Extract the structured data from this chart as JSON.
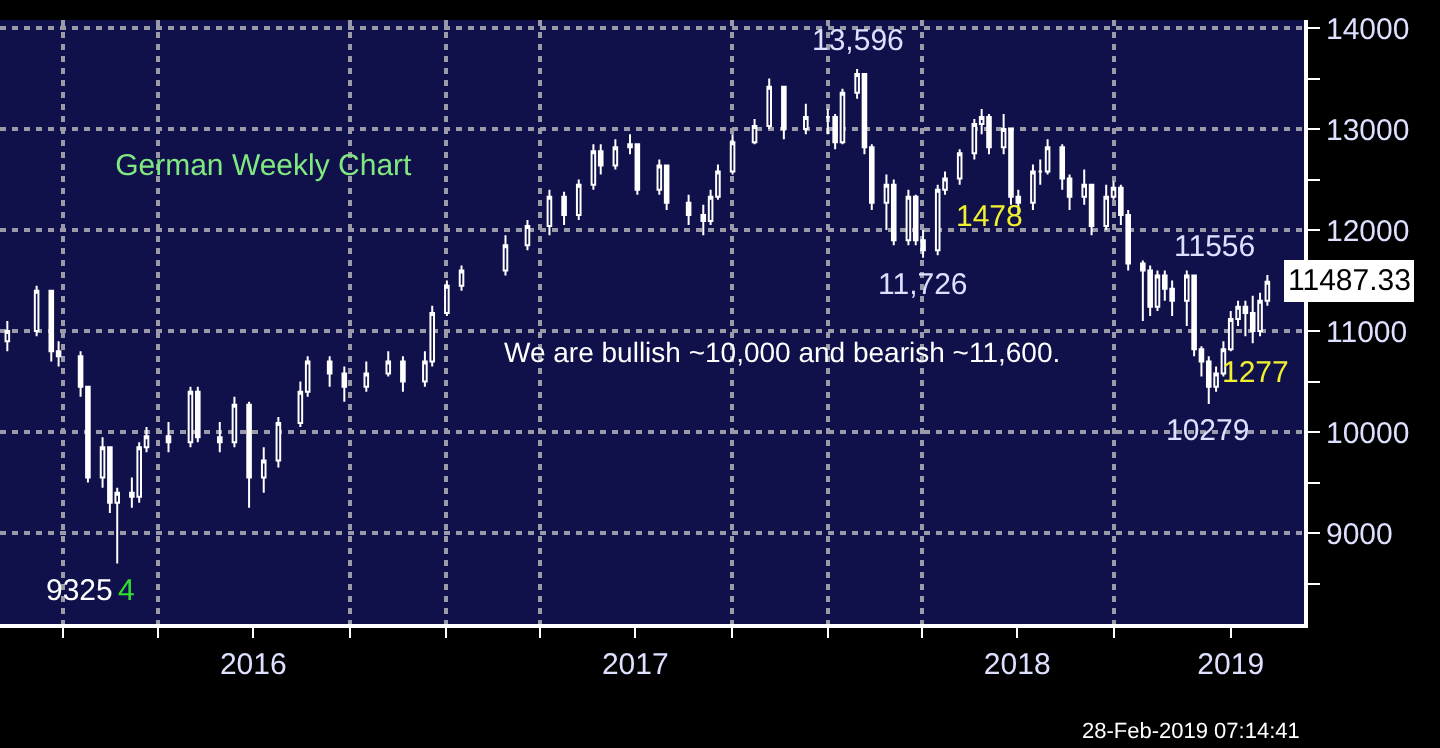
{
  "chart_data": {
    "type": "candlestick",
    "title": "German Weekly Chart",
    "x": [
      "2015-11-09",
      "2015-12-07",
      "2015-12-21",
      "2015-12-28",
      "2016-01-18",
      "2016-01-25",
      "2016-02-08",
      "2016-02-15",
      "2016-02-22",
      "2016-03-07",
      "2016-03-14",
      "2016-03-21",
      "2016-04-11",
      "2016-05-02",
      "2016-05-09",
      "2016-05-30",
      "2016-06-13",
      "2016-06-27",
      "2016-07-11",
      "2016-07-25",
      "2016-08-15",
      "2016-08-22",
      "2016-09-12",
      "2016-09-26",
      "2016-10-17",
      "2016-11-07",
      "2016-11-21",
      "2016-12-12",
      "2016-12-19",
      "2017-01-02",
      "2017-01-16",
      "2017-02-27",
      "2017-03-20",
      "2017-04-10",
      "2017-04-24",
      "2017-05-08",
      "2017-05-22",
      "2017-05-29",
      "2017-06-12",
      "2017-06-26",
      "2017-07-03",
      "2017-07-24",
      "2017-07-31",
      "2017-08-21",
      "2017-09-04",
      "2017-09-11",
      "2017-09-18",
      "2017-10-02",
      "2017-10-23",
      "2017-11-06",
      "2017-11-20",
      "2017-12-11",
      "2018-01-01",
      "2018-01-08",
      "2018-01-15",
      "2018-01-29",
      "2018-02-05",
      "2018-02-12",
      "2018-02-26",
      "2018-03-05",
      "2018-03-19",
      "2018-03-26",
      "2018-04-02",
      "2018-04-16",
      "2018-04-23",
      "2018-05-07",
      "2018-05-21",
      "2018-05-28",
      "2018-06-04",
      "2018-06-18",
      "2018-06-25",
      "2018-07-02",
      "2018-07-16",
      "2018-07-23",
      "2018-07-30",
      "2018-08-13",
      "2018-08-20",
      "2018-09-03",
      "2018-09-10",
      "2018-09-24",
      "2018-10-01",
      "2018-10-08",
      "2018-10-15",
      "2018-10-29",
      "2018-11-05",
      "2018-11-12",
      "2018-11-19",
      "2018-11-26",
      "2018-12-10",
      "2018-12-17",
      "2018-12-24",
      "2018-12-31",
      "2019-01-07",
      "2019-01-14",
      "2019-01-21",
      "2019-01-28",
      "2019-02-04",
      "2019-02-11",
      "2019-02-18",
      "2019-02-25"
    ],
    "ohlc": [
      [
        10900,
        11100,
        10800,
        11000
      ],
      [
        11000,
        11450,
        10950,
        11400
      ],
      [
        11400,
        11400,
        10700,
        10800
      ],
      [
        10800,
        10900,
        10650,
        10750
      ],
      [
        10750,
        10800,
        10350,
        10450
      ],
      [
        10450,
        10450,
        9500,
        9550
      ],
      [
        9550,
        9950,
        9450,
        9850
      ],
      [
        9850,
        9850,
        9200,
        9300
      ],
      [
        9300,
        9450,
        8700,
        9400
      ],
      [
        9400,
        9550,
        9250,
        9360
      ],
      [
        9360,
        9900,
        9300,
        9850
      ],
      [
        9850,
        10050,
        9800,
        9960
      ],
      [
        9960,
        10100,
        9800,
        9900
      ],
      [
        9900,
        10450,
        9850,
        10400
      ],
      [
        10400,
        10450,
        9900,
        9950
      ],
      [
        9950,
        10100,
        9800,
        9900
      ],
      [
        9900,
        10350,
        9850,
        10270
      ],
      [
        10270,
        10300,
        9250,
        9550
      ],
      [
        9550,
        9850,
        9400,
        9720
      ],
      [
        9720,
        10150,
        9650,
        10090
      ],
      [
        10090,
        10500,
        10050,
        10400
      ],
      [
        10400,
        10750,
        10350,
        10700
      ],
      [
        10700,
        10750,
        10450,
        10580
      ],
      [
        10580,
        10650,
        10300,
        10450
      ],
      [
        10450,
        10700,
        10400,
        10580
      ],
      [
        10580,
        10800,
        10550,
        10700
      ],
      [
        10700,
        10750,
        10400,
        10500
      ],
      [
        10500,
        10800,
        10450,
        10700
      ],
      [
        10700,
        11250,
        10650,
        11180
      ],
      [
        11180,
        11500,
        11150,
        11450
      ],
      [
        11450,
        11650,
        11400,
        11600
      ],
      [
        11600,
        11950,
        11550,
        11850
      ],
      [
        11850,
        12100,
        11800,
        12040
      ],
      [
        12040,
        12400,
        11950,
        12330
      ],
      [
        12330,
        12380,
        12050,
        12150
      ],
      [
        12150,
        12500,
        12100,
        12450
      ],
      [
        12450,
        12850,
        12400,
        12780
      ],
      [
        12780,
        12850,
        12550,
        12640
      ],
      [
        12640,
        12900,
        12600,
        12820
      ],
      [
        12820,
        12950,
        12750,
        12850
      ],
      [
        12850,
        12850,
        12350,
        12400
      ],
      [
        12400,
        12700,
        12350,
        12640
      ],
      [
        12640,
        12650,
        12200,
        12270
      ],
      [
        12270,
        12350,
        12050,
        12150
      ],
      [
        12150,
        12250,
        11950,
        12090
      ],
      [
        12090,
        12400,
        12050,
        12330
      ],
      [
        12330,
        12650,
        12300,
        12580
      ],
      [
        12580,
        12950,
        12550,
        12870
      ],
      [
        12870,
        13100,
        12850,
        13030
      ],
      [
        13030,
        13500,
        13000,
        13420
      ],
      [
        13420,
        13420,
        12900,
        13000
      ],
      [
        13000,
        13250,
        12950,
        13120
      ],
      [
        13120,
        13200,
        12950,
        13120
      ],
      [
        13120,
        13150,
        12800,
        12870
      ],
      [
        12870,
        13400,
        12850,
        13360
      ],
      [
        13360,
        13596,
        13300,
        13545
      ],
      [
        13545,
        13545,
        12750,
        12820
      ],
      [
        12820,
        12850,
        12200,
        12270
      ],
      [
        12270,
        12550,
        12000,
        12450
      ],
      [
        12450,
        12500,
        11850,
        11900
      ],
      [
        11900,
        12400,
        11850,
        12330
      ],
      [
        12330,
        12350,
        11850,
        11900
      ],
      [
        11900,
        12000,
        11726,
        11800
      ],
      [
        11800,
        12450,
        11750,
        12400
      ],
      [
        12400,
        12580,
        12350,
        12510
      ],
      [
        12510,
        12800,
        12450,
        12760
      ],
      [
        12760,
        13100,
        12700,
        13050
      ],
      [
        13050,
        13200,
        12950,
        13120
      ],
      [
        13120,
        13150,
        12750,
        12820
      ],
      [
        12820,
        13150,
        12750,
        13000
      ],
      [
        13000,
        13000,
        12250,
        12330
      ],
      [
        12330,
        12400,
        12150,
        12270
      ],
      [
        12270,
        12650,
        12200,
        12580
      ],
      [
        12580,
        12700,
        12450,
        12580
      ],
      [
        12580,
        12900,
        12550,
        12820
      ],
      [
        12820,
        12850,
        12400,
        12510
      ],
      [
        12510,
        12550,
        12200,
        12330
      ],
      [
        12330,
        12600,
        12250,
        12450
      ],
      [
        12450,
        12450,
        11950,
        12040
      ],
      [
        12040,
        12450,
        12000,
        12330
      ],
      [
        12330,
        12480,
        12300,
        12420
      ],
      [
        12420,
        12450,
        12050,
        12150
      ],
      [
        12150,
        12200,
        11600,
        11670
      ],
      [
        11670,
        11700,
        11100,
        11600
      ],
      [
        11600,
        11650,
        11150,
        11240
      ],
      [
        11240,
        11600,
        11200,
        11550
      ],
      [
        11550,
        11600,
        11300,
        11420
      ],
      [
        11420,
        11500,
        11150,
        11300
      ],
      [
        11300,
        11600,
        11050,
        11550
      ],
      [
        11550,
        11550,
        10750,
        10820
      ],
      [
        10820,
        10850,
        10550,
        10700
      ],
      [
        10700,
        10750,
        10279,
        10450
      ],
      [
        10450,
        10650,
        10400,
        10580
      ],
      [
        10580,
        10900,
        10550,
        10820
      ],
      [
        10820,
        11200,
        10800,
        11120
      ],
      [
        11120,
        11300,
        11050,
        11240
      ],
      [
        11240,
        11300,
        10950,
        11180
      ],
      [
        11180,
        11350,
        10880,
        11000
      ],
      [
        11000,
        11380,
        10950,
        11300
      ],
      [
        11300,
        11556,
        11250,
        11487.33
      ]
    ],
    "color": "#ffffff",
    "xlim": [
      "2015-11-02",
      "2019-04-01"
    ],
    "xticks": [
      {
        "value": "2016-01-01",
        "label": null
      },
      {
        "value": "2016-04-01",
        "label": null
      },
      {
        "value": "2016-07-01",
        "label": "2016"
      },
      {
        "value": "2016-10-01",
        "label": null
      },
      {
        "value": "2017-01-01",
        "label": null
      },
      {
        "value": "2017-04-01",
        "label": null
      },
      {
        "value": "2017-07-01",
        "label": "2017"
      },
      {
        "value": "2017-10-01",
        "label": null
      },
      {
        "value": "2018-01-01",
        "label": null
      },
      {
        "value": "2018-04-01",
        "label": null
      },
      {
        "value": "2018-07-01",
        "label": "2018"
      },
      {
        "value": "2018-10-01",
        "label": null
      },
      {
        "value": "2019-01-21",
        "label": "2019"
      }
    ],
    "ylim": [
      8100,
      14080
    ],
    "yticks": [
      {
        "value": 8500,
        "label": null
      },
      9000,
      {
        "value": 9500,
        "label": null
      },
      10000,
      {
        "value": 10500,
        "label": null
      },
      11000,
      {
        "value": 11500,
        "label": null
      },
      12000,
      {
        "value": 12500,
        "label": null
      },
      13000,
      {
        "value": 13500,
        "label": null
      },
      14000
    ],
    "grid": true,
    "legend": false,
    "annotations": [
      {
        "text": "13,596",
        "x": "2018-01-29",
        "y": 13596
      },
      {
        "text": "11,726",
        "x": "2018-04-02",
        "y": 11726
      },
      "1478",
      {
        "text": "11556",
        "x": "2019-02-25",
        "y": 11556
      },
      {
        "text": "11487.33",
        "x": "2019-02-25",
        "y": 11487.33
      },
      "1277",
      {
        "text": "10279",
        "x": "2018-12-31",
        "y": 10279
      },
      "9325",
      "4",
      "We are bullish ~10,000 and bearish ~11,600.",
      "28-Feb-2019 07:14:41"
    ]
  }
}
